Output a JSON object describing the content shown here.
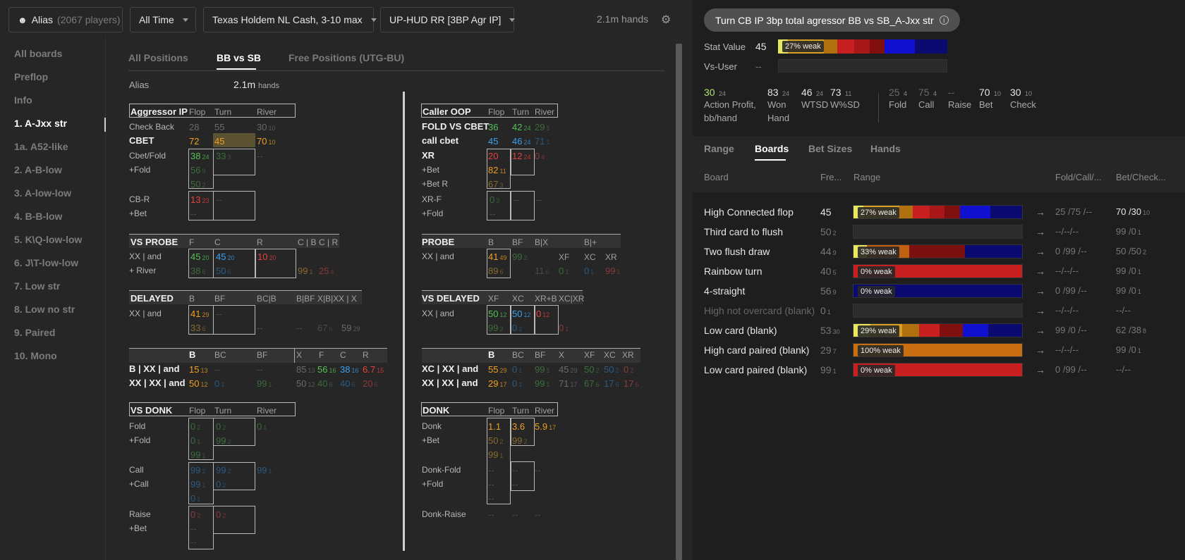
{
  "toolbar": {
    "player_label": "Alias",
    "player_count": "(2067 players)",
    "time": "All Time",
    "game": "Texas Holdem NL Cash, 3-10 max",
    "hud": "UP-HUD RR [3BP Agr IP]",
    "hands": "2.1m hands"
  },
  "sidebar": [
    "All boards",
    "Preflop",
    "Info",
    "1. A-Jxx str",
    "1a. A52-like",
    "2. A-B-low",
    "3. A-low-low",
    "4. B-B-low",
    "5. K\\Q-low-low",
    "6. J\\T-low-low",
    "7. Low str",
    "8. Low no str",
    "9. Paired",
    "10. Mono"
  ],
  "tabs": [
    "All Positions",
    "BB vs SB",
    "Free Positions (UTG-BU)"
  ],
  "alias_row": {
    "name": "Alias",
    "hands": "2.1m",
    "unit": "hands"
  },
  "right": {
    "title": "Turn CB IP 3bp total agressor BB vs SB_A-Jxx str",
    "stat_value_label": "Stat Value",
    "stat_value": "45",
    "stat_bar_label": "27% weak",
    "vs_user_label": "Vs-User",
    "vs_user": "--",
    "stats": [
      {
        "v": "30",
        "s": "24",
        "l1": "Action Profit,",
        "l2": "bb/hand"
      },
      {
        "v": "83",
        "s": "24",
        "l1": "Won",
        "l2": "Hand"
      },
      {
        "v": "46",
        "s": "24",
        "l1": "WTSD",
        "l2": ""
      },
      {
        "v": "73",
        "s": "11",
        "l1": "W%SD",
        "l2": ""
      },
      {
        "v": "25",
        "s": "4",
        "l1": "Fold",
        "l2": ""
      },
      {
        "v": "75",
        "s": "4",
        "l1": "Call",
        "l2": ""
      },
      {
        "v": "--",
        "s": "",
        "l1": "Raise",
        "l2": ""
      },
      {
        "v": "70",
        "s": "10",
        "l1": "Bet",
        "l2": ""
      },
      {
        "v": "30",
        "s": "10",
        "l1": "Check",
        "l2": ""
      }
    ],
    "tabs": [
      "Range",
      "Boards",
      "Bet Sizes",
      "Hands"
    ],
    "columns": [
      "Board",
      "Fre...",
      "Range",
      "Fold/Call/...",
      "Bet/Check..."
    ],
    "boards": [
      {
        "name": "High Connected flop",
        "freq": "45",
        "fs": "",
        "bar": "27% weak",
        "fcr": "25 /75 /--",
        "bc": "70 /30",
        "bcs": "10"
      },
      {
        "name": "Third card to flush",
        "freq": "50",
        "fs": "2",
        "bar": "",
        "fcr": "--/--/--",
        "bc": "99 /0",
        "bcs": "1"
      },
      {
        "name": "Two flush draw",
        "freq": "44",
        "fs": "9",
        "bar": "33% weak",
        "fcr": "0 /99 /--",
        "bc": "50 /50",
        "bcs": "2"
      },
      {
        "name": "Rainbow turn",
        "freq": "40",
        "fs": "5",
        "bar": "0% weak",
        "fcr": "--/--/--",
        "bc": "99 /0",
        "bcs": "1"
      },
      {
        "name": "4-straight",
        "freq": "56",
        "fs": "9",
        "bar": "0% weak",
        "fcr": "0 /99 /--",
        "bc": "99 /0",
        "bcs": "1"
      },
      {
        "name": "High not overcard (blank)",
        "freq": "0",
        "fs": "1",
        "bar": "",
        "fcr": "--/--/--",
        "bc": "--/--",
        "bcs": ""
      },
      {
        "name": "Low card (blank)",
        "freq": "53",
        "fs": "30",
        "bar": "29% weak",
        "fcr": "99 /0 /--",
        "bc": "62 /38",
        "bcs": "8"
      },
      {
        "name": "High card paired (blank)",
        "freq": "29",
        "fs": "7",
        "bar": "100% weak",
        "fcr": "--/--/--",
        "bc": "99 /0",
        "bcs": "1"
      },
      {
        "name": "Low card paired (blank)",
        "freq": "99",
        "fs": "1",
        "bar": "0% weak",
        "fcr": "0 /99 /--",
        "bc": "--/--",
        "bcs": ""
      }
    ]
  },
  "grid": {
    "agg_hdr": [
      "Aggressor IP",
      "Flop",
      "Turn",
      "River"
    ],
    "agg_rows": [
      "Check Back",
      "CBET",
      "Cbet/Fold",
      "+Fold",
      "CB-R",
      "+Bet"
    ],
    "caller_hdr": [
      "Caller OOP",
      "Flop",
      "Turn",
      "River"
    ],
    "caller_rows": [
      "FOLD VS CBET",
      "call cbet",
      "XR",
      "+Bet",
      "+Bet R",
      "XR-F",
      "+Fold"
    ],
    "probe_hdr": [
      "VS PROBE",
      "F",
      "C",
      "R",
      "C | B",
      "C | R"
    ],
    "probe_rows": [
      "XX | and",
      "+ River"
    ],
    "probe2_hdr": [
      "PROBE",
      "B",
      "BF",
      "B|X",
      "B|+"
    ],
    "probe2_sub": [
      "XF",
      "XC",
      "XR"
    ],
    "delayed_hdr": [
      "DELAYED",
      "B",
      "BF",
      "BC|B",
      "B|BF",
      "X|B|X",
      "X | X"
    ],
    "vsdelayed_hdr": [
      "VS DELAYED",
      "XF",
      "XC",
      "XR+B",
      "XC|XR"
    ],
    "xx_hdr": [
      "B",
      "BC",
      "BF",
      "X",
      "F",
      "C",
      "R"
    ],
    "xx_rows": [
      "B | XX | and",
      "XX | XX | and"
    ],
    "xc_hdr": [
      "B",
      "BC",
      "BF",
      "X",
      "XF",
      "XC",
      "XR"
    ],
    "xc_rows": [
      "XC | XX | and",
      "XX | XX | and"
    ],
    "donk_hdr": [
      "VS DONK",
      "Flop",
      "Turn",
      "River"
    ],
    "donk_rows": [
      "Fold",
      "+Fold",
      "Call",
      "+Call",
      "Raise",
      "+Bet"
    ],
    "donk2_hdr": [
      "DONK",
      "Flop",
      "Turn",
      "River"
    ],
    "donk2_rows": [
      "Donk",
      "+Bet",
      "Donk-Fold",
      "+Fold",
      "Donk-Raise"
    ]
  }
}
